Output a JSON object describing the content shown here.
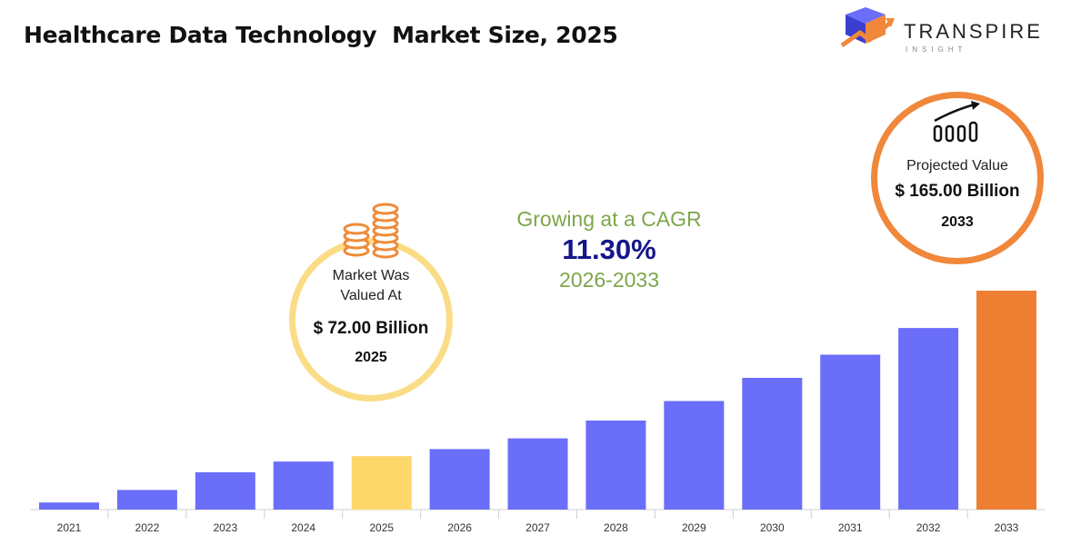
{
  "title": "Healthcare Data Technology  Market Size, 2025",
  "logo": {
    "name": "TRANSPIRE",
    "sub": "INSIGHT"
  },
  "cagr": {
    "label": "Growing at a CAGR",
    "value": "11.30%",
    "period": "2026-2033"
  },
  "left_bubble": {
    "line1": "Market Was",
    "line2": "Valued At",
    "value": "$ 72.00 Billion",
    "year": "2025"
  },
  "right_bubble": {
    "label": "Projected Value",
    "value": "$ 165.00 Billion",
    "year": "2033"
  },
  "colors": {
    "bar": "#6b6ef8",
    "highlight_base": "#fdd76a",
    "highlight_projected": "#ee7f32",
    "cagr_text": "#7ea64a",
    "cagr_value": "#16168a"
  },
  "icons": {
    "logo": "transpire-logo-icon",
    "left": "coin-stack-icon",
    "right": "growth-chart-icon"
  },
  "chart_data": {
    "type": "bar",
    "categories": [
      "2021",
      "2022",
      "2023",
      "2024",
      "2025",
      "2026",
      "2027",
      "2028",
      "2029",
      "2030",
      "2031",
      "2032",
      "2033"
    ],
    "values": [
      46,
      53,
      63,
      69,
      72,
      76,
      82,
      92,
      103,
      116,
      129,
      144,
      165
    ],
    "highlight": {
      "2025": "base",
      "2033": "projected"
    },
    "title": "Healthcare Data Technology  Market Size, 2025",
    "xlabel": "",
    "ylabel": "",
    "grid": false,
    "legend": "none"
  }
}
